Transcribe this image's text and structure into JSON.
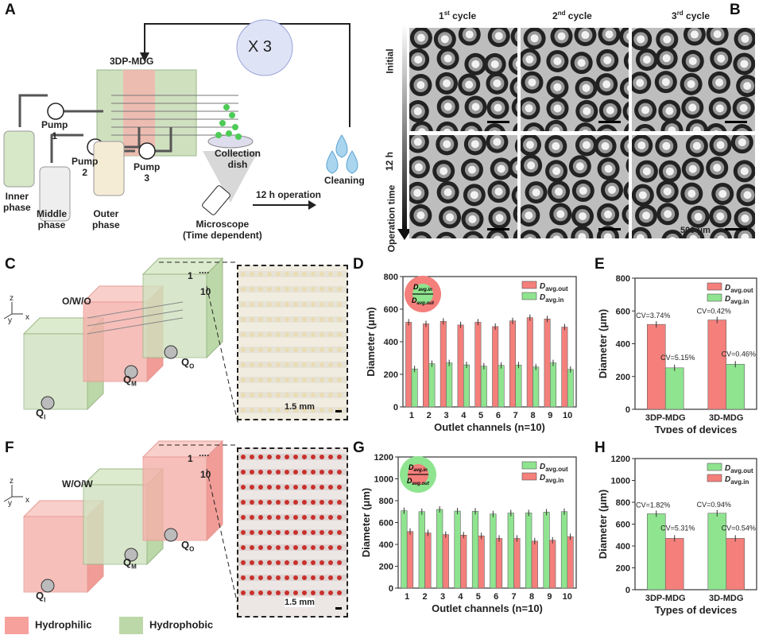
{
  "panels": {
    "a": "A",
    "b": "B",
    "c": "C",
    "d": "D",
    "e": "E",
    "f": "F",
    "g": "G",
    "h": "H"
  },
  "panel_a": {
    "device": "3DP-MDG",
    "repeat": "X 3",
    "pump1": "Pump\n1",
    "pump2": "Pump\n2",
    "pump3": "Pump\n3",
    "inner": "Inner\nphase",
    "middle": "Middle\nphase",
    "outer": "Outer\nphase",
    "dish": "Collection\ndish",
    "microscope": "Microscope\n(Time dependent)",
    "operation": "12 h operation",
    "cleaning": "Cleaning"
  },
  "panel_b": {
    "columns": [
      {
        "n": "1",
        "sup": "st",
        "w": " cycle"
      },
      {
        "n": "2",
        "sup": "nd",
        "w": " cycle"
      },
      {
        "n": "3",
        "sup": "rd",
        "w": " cycle"
      }
    ],
    "row_initial": "Initial",
    "row_12h": "12 h",
    "axis": "Operation time",
    "scale": "500 μm"
  },
  "panel_c": {
    "type": "O/W/O",
    "ch_first": "1",
    "ch_dots": "....",
    "ch_last": "10",
    "qi": "Q",
    "qi_sub": "I",
    "qm": "Q",
    "qm_sub": "M",
    "qo": "Q",
    "qo_sub": "O",
    "scale": "1.5 mm",
    "ax_y": "y",
    "ax_z": "z",
    "ax_x": "x"
  },
  "panel_f": {
    "type": "W/O/W",
    "ch_first": "1",
    "ch_dots": "....",
    "ch_last": "10",
    "qi": "Q",
    "qi_sub": "I",
    "qm": "Q",
    "qm_sub": "M",
    "qo": "Q",
    "qo_sub": "O",
    "scale": "1.5 mm",
    "ax_y": "y",
    "ax_z": "z",
    "ax_x": "x"
  },
  "legend": {
    "hydrophilic": "Hydrophilic",
    "hydrophobic": "Hydrophobic"
  },
  "colors": {
    "red": "#f47f7b",
    "green": "#8fe48f",
    "hydrophilic": "#f6a19c",
    "hydrophobic": "#bcd8a8"
  },
  "chart_data": [
    {
      "id": "D",
      "type": "bar",
      "categories": [
        "1",
        "2",
        "3",
        "4",
        "5",
        "6",
        "7",
        "8",
        "9",
        "10"
      ],
      "xlabel": "Outlet channels (n=10)",
      "ylabel": "Diameter (μm)",
      "ylim": [
        0,
        800
      ],
      "yticks": [
        0,
        200,
        400,
        600,
        800
      ],
      "legend": "top-right",
      "series": [
        {
          "name": "D avg.out",
          "symbol": "D",
          "sub": "avg.out",
          "color": "#f47f7b",
          "values": [
            520,
            510,
            525,
            503,
            520,
            493,
            528,
            548,
            540,
            490
          ]
        },
        {
          "name": "D avg.in",
          "symbol": "D",
          "sub": "avg.in",
          "color": "#8fe48f",
          "values": [
            233,
            265,
            270,
            258,
            250,
            255,
            257,
            245,
            270,
            230
          ]
        }
      ],
      "inset": {
        "outer_color": "#f47f7b",
        "inner_color": "#8fe48f",
        "label_in": "avg.in",
        "label_out": "avg.out",
        "symbol": "D"
      }
    },
    {
      "id": "E",
      "type": "bar",
      "categories": [
        "3DP-MDG",
        "3D-MDG"
      ],
      "xlabel": "Types of devices",
      "ylabel": "Diameter (μm)",
      "ylim": [
        0,
        800
      ],
      "yticks": [
        0,
        200,
        400,
        600,
        800
      ],
      "legend": "top-right",
      "series": [
        {
          "name": "D avg.out",
          "symbol": "D",
          "sub": "avg.out",
          "color": "#f47f7b",
          "values": [
            518,
            545
          ],
          "annotations": [
            "CV=3.74%",
            "CV=0.42%"
          ]
        },
        {
          "name": "D avg.in",
          "symbol": "D",
          "sub": "avg.in",
          "color": "#8fe48f",
          "values": [
            253,
            275
          ],
          "annotations": [
            "CV=5.15%",
            "CV=0.46%"
          ]
        }
      ]
    },
    {
      "id": "G",
      "type": "bar",
      "categories": [
        "1",
        "2",
        "3",
        "4",
        "5",
        "6",
        "7",
        "8",
        "9",
        "10"
      ],
      "xlabel": "Outlet channels (n=10)",
      "ylabel": "Diameter (μm)",
      "ylim": [
        0,
        1200
      ],
      "yticks": [
        0,
        200,
        400,
        600,
        800,
        1000,
        1200
      ],
      "legend": "top-right",
      "series": [
        {
          "name": "D avg.out",
          "symbol": "D",
          "sub": "avg.out",
          "color": "#8fe48f",
          "values": [
            708,
            700,
            720,
            705,
            703,
            678,
            687,
            688,
            695,
            700
          ]
        },
        {
          "name": "D avg.in",
          "symbol": "D",
          "sub": "avg.in",
          "color": "#f47f7b",
          "values": [
            518,
            505,
            490,
            485,
            478,
            455,
            455,
            430,
            438,
            470
          ]
        }
      ],
      "inset": {
        "outer_color": "#8fe48f",
        "inner_color": "#f47f7b",
        "label_in": "avg.in",
        "label_out": "avg.out",
        "symbol": "D"
      }
    },
    {
      "id": "H",
      "type": "bar",
      "categories": [
        "3DP-MDG",
        "3D-MDG"
      ],
      "xlabel": "Types of devices",
      "ylabel": "Diameter (μm)",
      "ylim": [
        0,
        1200
      ],
      "yticks": [
        0,
        200,
        400,
        600,
        800,
        1000,
        1200
      ],
      "legend": "top-right",
      "series": [
        {
          "name": "D avg.out",
          "symbol": "D",
          "sub": "avg.out",
          "color": "#8fe48f",
          "values": [
            695,
            700
          ],
          "annotations": [
            "CV=1.82%",
            "CV=0.94%"
          ]
        },
        {
          "name": "D avg.in",
          "symbol": "D",
          "sub": "avg.in",
          "color": "#f47f7b",
          "values": [
            470,
            470
          ],
          "annotations": [
            "CV=5.31%",
            "CV=0.54%"
          ]
        }
      ]
    }
  ]
}
